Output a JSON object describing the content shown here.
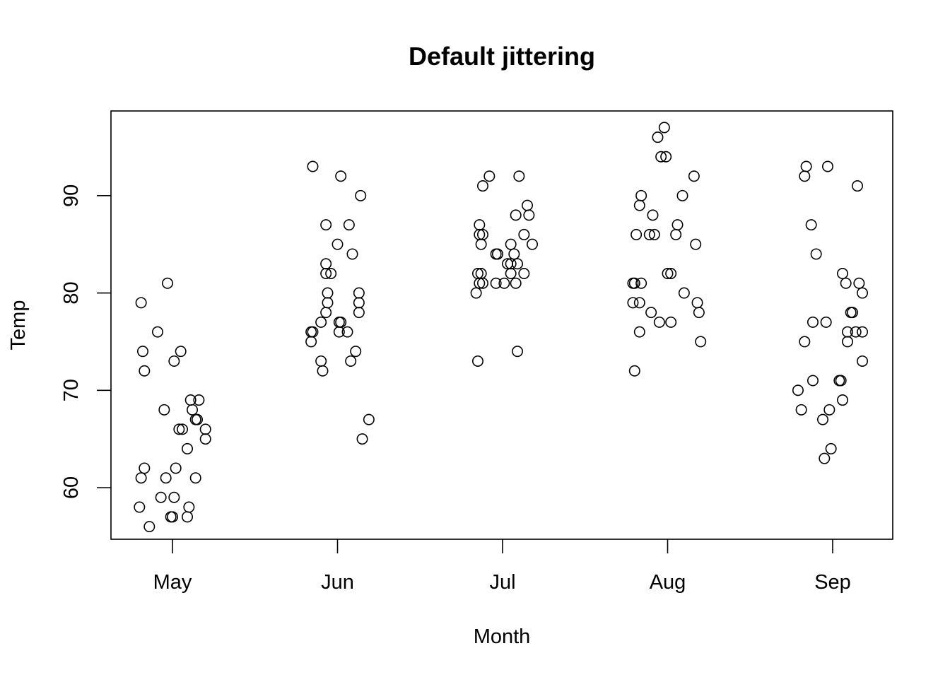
{
  "chart_data": {
    "type": "scatter",
    "title": "Default jittering",
    "xlabel": "Month",
    "ylabel": "Temp",
    "categories": [
      "May",
      "Jun",
      "Jul",
      "Aug",
      "Sep"
    ],
    "ylim": [
      54.7,
      98.7
    ],
    "yticks": [
      60,
      70,
      80,
      90
    ],
    "yticks_labels": [
      "60",
      "70",
      "80",
      "90"
    ],
    "grid": false,
    "legend": "none",
    "points": [
      {
        "x": -0.19,
        "y": 79
      },
      {
        "x": -0.18,
        "y": 74
      },
      {
        "x": -0.17,
        "y": 72
      },
      {
        "x": -0.09,
        "y": 76
      },
      {
        "x": -0.03,
        "y": 81
      },
      {
        "x": 0.01,
        "y": 73
      },
      {
        "x": 0.05,
        "y": 74
      },
      {
        "x": 0.11,
        "y": 69
      },
      {
        "x": 0.16,
        "y": 69
      },
      {
        "x": 0.12,
        "y": 68
      },
      {
        "x": 0.14,
        "y": 67
      },
      {
        "x": 0.15,
        "y": 67
      },
      {
        "x": -0.05,
        "y": 68
      },
      {
        "x": 0.04,
        "y": 66
      },
      {
        "x": 0.06,
        "y": 66
      },
      {
        "x": 0.2,
        "y": 66
      },
      {
        "x": 0.2,
        "y": 65
      },
      {
        "x": 0.09,
        "y": 64
      },
      {
        "x": -0.17,
        "y": 62
      },
      {
        "x": 0.02,
        "y": 62
      },
      {
        "x": -0.19,
        "y": 61
      },
      {
        "x": -0.04,
        "y": 61
      },
      {
        "x": 0.14,
        "y": 61
      },
      {
        "x": -0.07,
        "y": 59
      },
      {
        "x": 0.01,
        "y": 59
      },
      {
        "x": -0.2,
        "y": 58
      },
      {
        "x": 0.1,
        "y": 58
      },
      {
        "x": -0.01,
        "y": 57
      },
      {
        "x": 0.0,
        "y": 57
      },
      {
        "x": 0.09,
        "y": 57
      },
      {
        "x": -0.14,
        "y": 56
      },
      {
        "x": 0.85,
        "y": 93
      },
      {
        "x": 1.02,
        "y": 92
      },
      {
        "x": 1.14,
        "y": 90
      },
      {
        "x": 0.93,
        "y": 87
      },
      {
        "x": 1.07,
        "y": 87
      },
      {
        "x": 1.0,
        "y": 85
      },
      {
        "x": 1.09,
        "y": 84
      },
      {
        "x": 0.93,
        "y": 83
      },
      {
        "x": 0.93,
        "y": 82
      },
      {
        "x": 0.96,
        "y": 82
      },
      {
        "x": 0.94,
        "y": 80
      },
      {
        "x": 1.13,
        "y": 80
      },
      {
        "x": 0.94,
        "y": 79
      },
      {
        "x": 1.13,
        "y": 79
      },
      {
        "x": 0.93,
        "y": 78
      },
      {
        "x": 1.13,
        "y": 78
      },
      {
        "x": 0.9,
        "y": 77
      },
      {
        "x": 1.01,
        "y": 77
      },
      {
        "x": 1.02,
        "y": 77
      },
      {
        "x": 0.84,
        "y": 76
      },
      {
        "x": 0.85,
        "y": 76
      },
      {
        "x": 1.01,
        "y": 76
      },
      {
        "x": 1.06,
        "y": 76
      },
      {
        "x": 0.84,
        "y": 75
      },
      {
        "x": 1.11,
        "y": 74
      },
      {
        "x": 0.9,
        "y": 73
      },
      {
        "x": 1.08,
        "y": 73
      },
      {
        "x": 0.91,
        "y": 72
      },
      {
        "x": 1.19,
        "y": 67
      },
      {
        "x": 1.15,
        "y": 65
      },
      {
        "x": 1.92,
        "y": 92
      },
      {
        "x": 2.1,
        "y": 92
      },
      {
        "x": 1.88,
        "y": 91
      },
      {
        "x": 2.15,
        "y": 89
      },
      {
        "x": 2.08,
        "y": 88
      },
      {
        "x": 2.16,
        "y": 88
      },
      {
        "x": 1.86,
        "y": 87
      },
      {
        "x": 1.86,
        "y": 86
      },
      {
        "x": 1.88,
        "y": 86
      },
      {
        "x": 2.13,
        "y": 86
      },
      {
        "x": 1.87,
        "y": 85
      },
      {
        "x": 2.05,
        "y": 85
      },
      {
        "x": 2.18,
        "y": 85
      },
      {
        "x": 1.96,
        "y": 84
      },
      {
        "x": 1.97,
        "y": 84
      },
      {
        "x": 2.07,
        "y": 84
      },
      {
        "x": 2.03,
        "y": 83
      },
      {
        "x": 2.05,
        "y": 83
      },
      {
        "x": 2.09,
        "y": 83
      },
      {
        "x": 1.85,
        "y": 82
      },
      {
        "x": 1.87,
        "y": 82
      },
      {
        "x": 2.05,
        "y": 82
      },
      {
        "x": 2.13,
        "y": 82
      },
      {
        "x": 1.86,
        "y": 81
      },
      {
        "x": 1.88,
        "y": 81
      },
      {
        "x": 1.96,
        "y": 81
      },
      {
        "x": 2.01,
        "y": 81
      },
      {
        "x": 2.08,
        "y": 81
      },
      {
        "x": 1.84,
        "y": 80
      },
      {
        "x": 2.09,
        "y": 74
      },
      {
        "x": 1.85,
        "y": 73
      },
      {
        "x": 2.98,
        "y": 97
      },
      {
        "x": 2.94,
        "y": 96
      },
      {
        "x": 2.96,
        "y": 94
      },
      {
        "x": 2.99,
        "y": 94
      },
      {
        "x": 3.16,
        "y": 92
      },
      {
        "x": 3.09,
        "y": 90
      },
      {
        "x": 2.84,
        "y": 90
      },
      {
        "x": 2.83,
        "y": 89
      },
      {
        "x": 2.91,
        "y": 88
      },
      {
        "x": 3.06,
        "y": 87
      },
      {
        "x": 2.81,
        "y": 86
      },
      {
        "x": 2.89,
        "y": 86
      },
      {
        "x": 2.92,
        "y": 86
      },
      {
        "x": 3.05,
        "y": 86
      },
      {
        "x": 3.17,
        "y": 85
      },
      {
        "x": 3.0,
        "y": 82
      },
      {
        "x": 3.02,
        "y": 82
      },
      {
        "x": 2.79,
        "y": 81
      },
      {
        "x": 2.8,
        "y": 81
      },
      {
        "x": 2.84,
        "y": 81
      },
      {
        "x": 3.1,
        "y": 80
      },
      {
        "x": 2.79,
        "y": 79
      },
      {
        "x": 2.83,
        "y": 79
      },
      {
        "x": 3.18,
        "y": 79
      },
      {
        "x": 2.9,
        "y": 78
      },
      {
        "x": 3.19,
        "y": 78
      },
      {
        "x": 2.95,
        "y": 77
      },
      {
        "x": 3.02,
        "y": 77
      },
      {
        "x": 2.83,
        "y": 76
      },
      {
        "x": 3.2,
        "y": 75
      },
      {
        "x": 2.8,
        "y": 72
      },
      {
        "x": 3.84,
        "y": 93
      },
      {
        "x": 3.97,
        "y": 93
      },
      {
        "x": 3.83,
        "y": 92
      },
      {
        "x": 4.15,
        "y": 91
      },
      {
        "x": 3.87,
        "y": 87
      },
      {
        "x": 3.9,
        "y": 84
      },
      {
        "x": 4.06,
        "y": 82
      },
      {
        "x": 4.08,
        "y": 81
      },
      {
        "x": 4.16,
        "y": 81
      },
      {
        "x": 4.18,
        "y": 80
      },
      {
        "x": 4.11,
        "y": 78
      },
      {
        "x": 4.12,
        "y": 78
      },
      {
        "x": 3.88,
        "y": 77
      },
      {
        "x": 3.96,
        "y": 77
      },
      {
        "x": 4.09,
        "y": 76
      },
      {
        "x": 4.14,
        "y": 76
      },
      {
        "x": 4.18,
        "y": 76
      },
      {
        "x": 3.83,
        "y": 75
      },
      {
        "x": 4.09,
        "y": 75
      },
      {
        "x": 4.18,
        "y": 73
      },
      {
        "x": 3.88,
        "y": 71
      },
      {
        "x": 4.04,
        "y": 71
      },
      {
        "x": 4.05,
        "y": 71
      },
      {
        "x": 3.79,
        "y": 70
      },
      {
        "x": 4.06,
        "y": 69
      },
      {
        "x": 3.81,
        "y": 68
      },
      {
        "x": 3.98,
        "y": 68
      },
      {
        "x": 3.94,
        "y": 67
      },
      {
        "x": 3.99,
        "y": 64
      },
      {
        "x": 3.95,
        "y": 63
      }
    ]
  }
}
